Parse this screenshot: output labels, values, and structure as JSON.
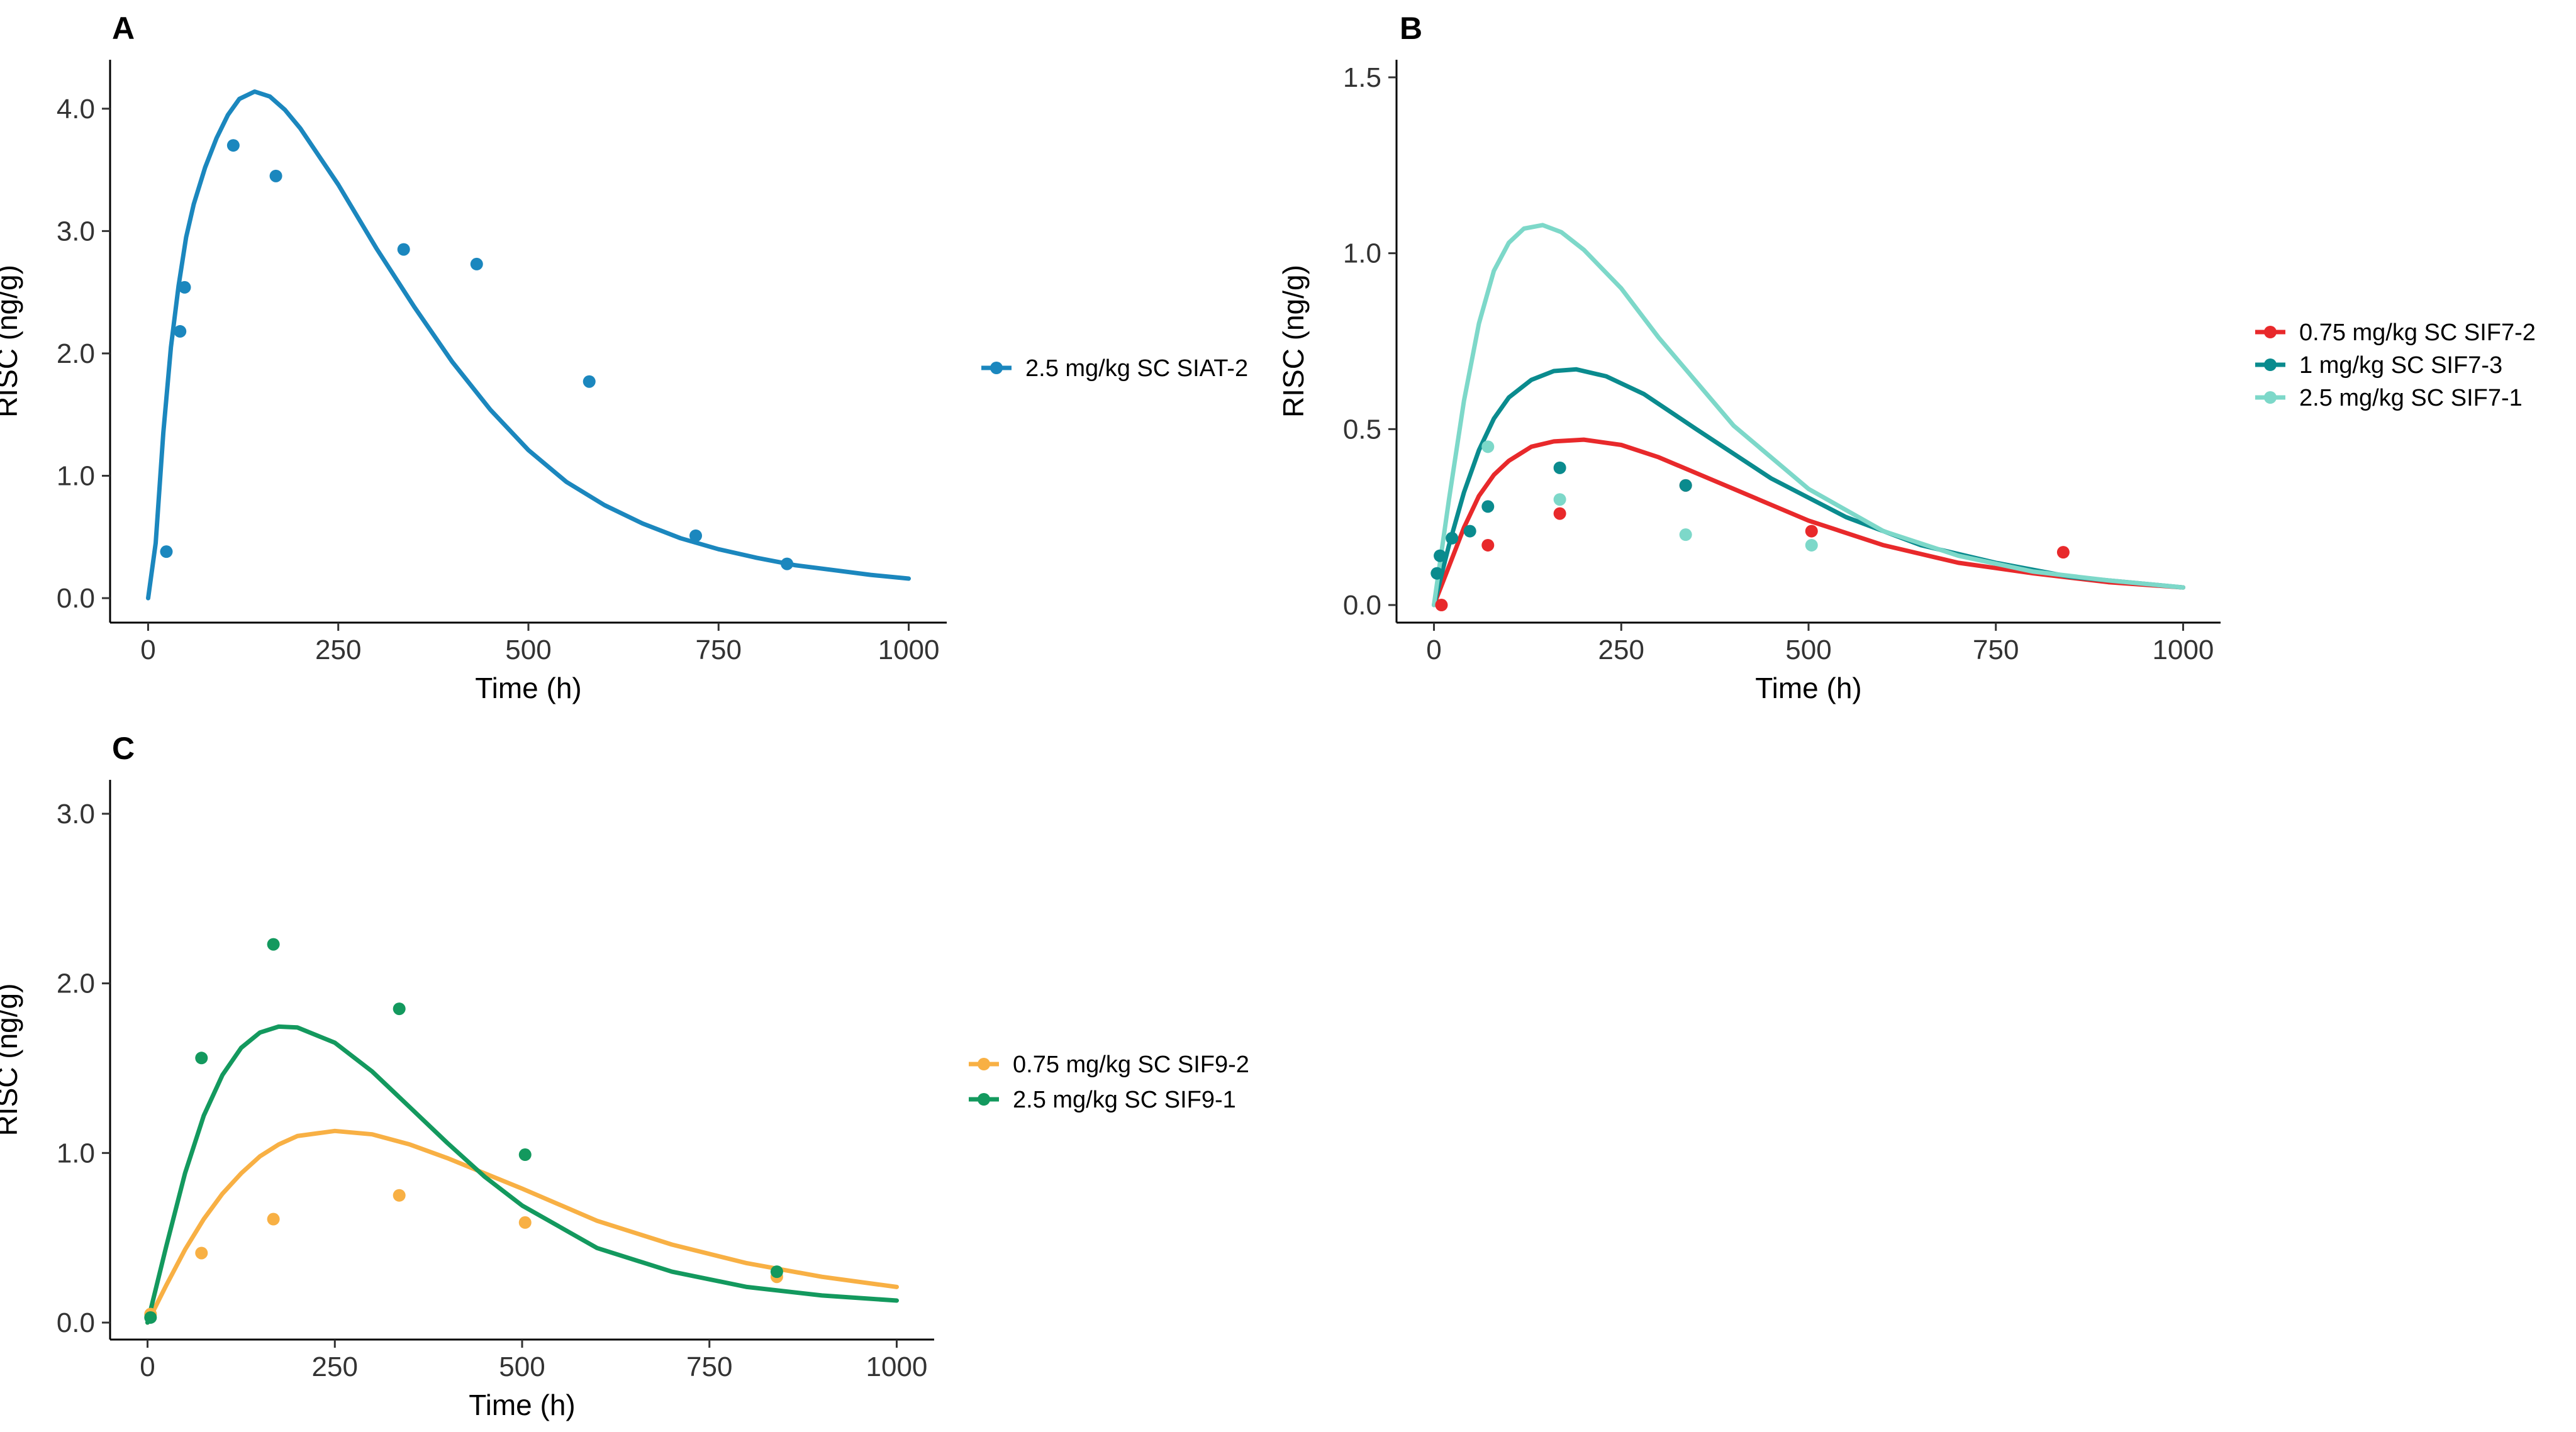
{
  "figure": {
    "background": "#ffffff"
  },
  "chart_data": [
    {
      "panel": "A",
      "type": "scatter",
      "xlabel": "Time (h)",
      "ylabel": "RISC (ng/g)",
      "xlim": [
        -50,
        1050
      ],
      "ylim": [
        -0.2,
        4.4
      ],
      "xticks": [
        0,
        250,
        500,
        750,
        1000
      ],
      "xtick_labels": [
        "0",
        "250",
        "500",
        "750",
        "1000"
      ],
      "yticks": [
        0,
        1,
        2,
        3,
        4
      ],
      "ytick_labels": [
        "0.0",
        "1.0",
        "2.0",
        "3.0",
        "4.0"
      ],
      "grid": false,
      "legend_position": "right",
      "series": [
        {
          "name": "2.5 mg/kg SC SIAT-2",
          "color": "#1b87be",
          "points": [
            [
              24,
              0.38
            ],
            [
              42,
              2.18
            ],
            [
              48,
              2.54
            ],
            [
              112,
              3.7
            ],
            [
              168,
              3.45
            ],
            [
              336,
              2.85
            ],
            [
              432,
              2.73
            ],
            [
              580,
              1.77
            ],
            [
              720,
              0.51
            ],
            [
              840,
              0.28
            ]
          ],
          "curve": [
            [
              0,
              0
            ],
            [
              10,
              0.45
            ],
            [
              20,
              1.35
            ],
            [
              30,
              2.05
            ],
            [
              40,
              2.55
            ],
            [
              50,
              2.95
            ],
            [
              60,
              3.22
            ],
            [
              75,
              3.52
            ],
            [
              90,
              3.76
            ],
            [
              105,
              3.95
            ],
            [
              120,
              4.08
            ],
            [
              140,
              4.14
            ],
            [
              160,
              4.1
            ],
            [
              180,
              3.99
            ],
            [
              200,
              3.84
            ],
            [
              250,
              3.38
            ],
            [
              300,
              2.86
            ],
            [
              350,
              2.38
            ],
            [
              400,
              1.93
            ],
            [
              450,
              1.54
            ],
            [
              500,
              1.21
            ],
            [
              550,
              0.95
            ],
            [
              600,
              0.76
            ],
            [
              650,
              0.61
            ],
            [
              700,
              0.49
            ],
            [
              750,
              0.4
            ],
            [
              800,
              0.33
            ],
            [
              850,
              0.27
            ],
            [
              900,
              0.23
            ],
            [
              950,
              0.19
            ],
            [
              1000,
              0.16
            ]
          ]
        }
      ]
    },
    {
      "panel": "B",
      "type": "scatter",
      "xlabel": "Time (h)",
      "ylabel": "RISC (ng/g)",
      "xlim": [
        -50,
        1050
      ],
      "ylim": [
        -0.05,
        1.55
      ],
      "xticks": [
        0,
        250,
        500,
        750,
        1000
      ],
      "xtick_labels": [
        "0",
        "250",
        "500",
        "750",
        "1000"
      ],
      "yticks": [
        0,
        0.5,
        1,
        1.5
      ],
      "ytick_labels": [
        "0.0",
        "0.5",
        "1.0",
        "1.5"
      ],
      "grid": false,
      "legend_position": "right",
      "series": [
        {
          "name": "0.75 mg/kg SC SIF7-2",
          "color": "#e8292b",
          "points": [
            [
              10,
              0.0
            ],
            [
              72,
              0.17
            ],
            [
              168,
              0.26
            ],
            [
              336,
              0.34
            ],
            [
              504,
              0.21
            ],
            [
              840,
              0.15
            ]
          ],
          "curve": [
            [
              0,
              0
            ],
            [
              20,
              0.11
            ],
            [
              40,
              0.22
            ],
            [
              60,
              0.31
            ],
            [
              80,
              0.37
            ],
            [
              100,
              0.41
            ],
            [
              130,
              0.45
            ],
            [
              160,
              0.465
            ],
            [
              200,
              0.47
            ],
            [
              250,
              0.455
            ],
            [
              300,
              0.42
            ],
            [
              400,
              0.33
            ],
            [
              500,
              0.24
            ],
            [
              600,
              0.17
            ],
            [
              700,
              0.12
            ],
            [
              800,
              0.09
            ],
            [
              900,
              0.065
            ],
            [
              1000,
              0.05
            ]
          ]
        },
        {
          "name": "1 mg/kg SC SIF7-3",
          "color": "#0a8b8e",
          "points": [
            [
              4,
              0.09
            ],
            [
              8,
              0.14
            ],
            [
              24,
              0.19
            ],
            [
              48,
              0.21
            ],
            [
              72,
              0.28
            ],
            [
              168,
              0.39
            ],
            [
              336,
              0.34
            ]
          ],
          "curve": [
            [
              0,
              0
            ],
            [
              20,
              0.17
            ],
            [
              40,
              0.32
            ],
            [
              60,
              0.44
            ],
            [
              80,
              0.53
            ],
            [
              100,
              0.59
            ],
            [
              130,
              0.64
            ],
            [
              160,
              0.665
            ],
            [
              190,
              0.67
            ],
            [
              230,
              0.65
            ],
            [
              280,
              0.6
            ],
            [
              350,
              0.5
            ],
            [
              450,
              0.36
            ],
            [
              550,
              0.25
            ],
            [
              650,
              0.17
            ],
            [
              750,
              0.12
            ],
            [
              850,
              0.08
            ],
            [
              1000,
              0.05
            ]
          ]
        },
        {
          "name": "2.5 mg/kg SC SIF7-1",
          "color": "#7dd8c9",
          "points": [
            [
              72,
              0.45
            ],
            [
              168,
              0.3
            ],
            [
              336,
              0.2
            ],
            [
              504,
              0.17
            ]
          ],
          "curve": [
            [
              0,
              0
            ],
            [
              20,
              0.3
            ],
            [
              40,
              0.58
            ],
            [
              60,
              0.8
            ],
            [
              80,
              0.95
            ],
            [
              100,
              1.03
            ],
            [
              120,
              1.07
            ],
            [
              145,
              1.08
            ],
            [
              170,
              1.06
            ],
            [
              200,
              1.01
            ],
            [
              250,
              0.9
            ],
            [
              300,
              0.76
            ],
            [
              400,
              0.51
            ],
            [
              500,
              0.33
            ],
            [
              600,
              0.21
            ],
            [
              700,
              0.14
            ],
            [
              800,
              0.095
            ],
            [
              900,
              0.07
            ],
            [
              1000,
              0.05
            ]
          ]
        }
      ]
    },
    {
      "panel": "C",
      "type": "scatter",
      "xlabel": "Time (h)",
      "ylabel": "RISC (ng/g)",
      "xlim": [
        -50,
        1050
      ],
      "ylim": [
        -0.1,
        3.2
      ],
      "xticks": [
        0,
        250,
        500,
        750,
        1000
      ],
      "xtick_labels": [
        "0",
        "250",
        "500",
        "750",
        "1000"
      ],
      "yticks": [
        0,
        1,
        2,
        3
      ],
      "ytick_labels": [
        "0.0",
        "1.0",
        "2.0",
        "3.0"
      ],
      "grid": false,
      "legend_position": "right",
      "series": [
        {
          "name": "0.75 mg/kg SC SIF9-2",
          "color": "#f8b044",
          "points": [
            [
              4,
              0.05
            ],
            [
              72,
              0.41
            ],
            [
              168,
              0.61
            ],
            [
              336,
              0.75
            ],
            [
              504,
              0.59
            ],
            [
              840,
              0.27
            ]
          ],
          "curve": [
            [
              0,
              0
            ],
            [
              25,
              0.22
            ],
            [
              50,
              0.43
            ],
            [
              75,
              0.61
            ],
            [
              100,
              0.76
            ],
            [
              125,
              0.88
            ],
            [
              150,
              0.98
            ],
            [
              175,
              1.05
            ],
            [
              200,
              1.1
            ],
            [
              250,
              1.13
            ],
            [
              300,
              1.11
            ],
            [
              350,
              1.05
            ],
            [
              400,
              0.97
            ],
            [
              450,
              0.88
            ],
            [
              500,
              0.79
            ],
            [
              600,
              0.6
            ],
            [
              700,
              0.46
            ],
            [
              800,
              0.35
            ],
            [
              900,
              0.27
            ],
            [
              1000,
              0.21
            ]
          ]
        },
        {
          "name": "2.5 mg/kg SC SIF9-1",
          "color": "#13995e",
          "points": [
            [
              4,
              0.03
            ],
            [
              72,
              1.56
            ],
            [
              168,
              2.23
            ],
            [
              336,
              1.85
            ],
            [
              504,
              0.99
            ],
            [
              840,
              0.3
            ]
          ],
          "curve": [
            [
              0,
              0
            ],
            [
              25,
              0.45
            ],
            [
              50,
              0.88
            ],
            [
              75,
              1.22
            ],
            [
              100,
              1.46
            ],
            [
              125,
              1.62
            ],
            [
              150,
              1.71
            ],
            [
              175,
              1.745
            ],
            [
              200,
              1.74
            ],
            [
              250,
              1.65
            ],
            [
              300,
              1.48
            ],
            [
              350,
              1.27
            ],
            [
              400,
              1.06
            ],
            [
              450,
              0.86
            ],
            [
              500,
              0.69
            ],
            [
              600,
              0.44
            ],
            [
              700,
              0.3
            ],
            [
              800,
              0.21
            ],
            [
              900,
              0.16
            ],
            [
              1000,
              0.13
            ]
          ]
        }
      ]
    }
  ]
}
